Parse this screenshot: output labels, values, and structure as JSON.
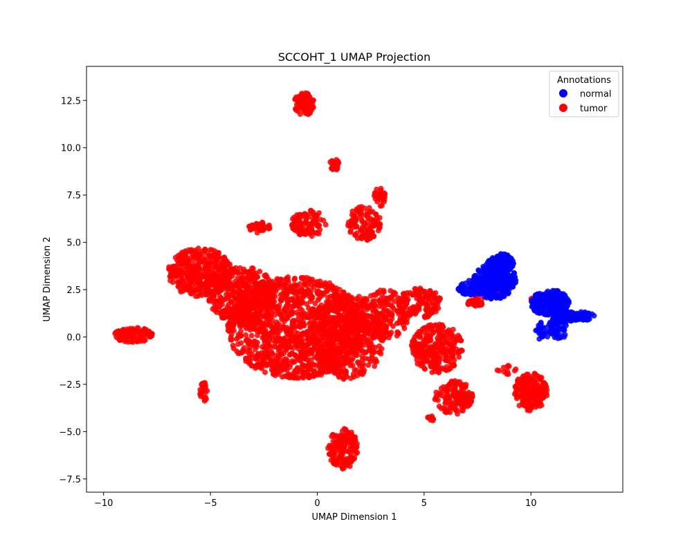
{
  "chart_data": {
    "type": "scatter",
    "title": "SCCOHT_1 UMAP Projection",
    "xlabel": "UMAP Dimension 1",
    "ylabel": "UMAP Dimension 2",
    "xlim": [
      -10.8,
      14.3
    ],
    "ylim": [
      -8.2,
      14.3
    ],
    "x_ticks": [
      -10,
      -5,
      0,
      5,
      10
    ],
    "x_tick_labels": [
      "−10",
      "−5",
      "0",
      "5",
      "10"
    ],
    "y_ticks": [
      -7.5,
      -5.0,
      -2.5,
      0.0,
      2.5,
      5.0,
      7.5,
      10.0,
      12.5
    ],
    "y_tick_labels": [
      "−7.5",
      "−5.0",
      "−2.5",
      "0.0",
      "2.5",
      "5.0",
      "7.5",
      "10.0",
      "12.5"
    ],
    "grid": false,
    "legend": {
      "title": "Annotations",
      "placement": "top-right",
      "entries": [
        {
          "label": "normal",
          "color": "#0000ff"
        },
        {
          "label": "tumor",
          "color": "#ff0000"
        }
      ]
    },
    "series": [
      {
        "name": "normal",
        "color": "#0000ff",
        "clusters": [
          {
            "cx": 8.3,
            "cy": 3.0,
            "rx": 1.0,
            "ry": 1.0,
            "n": 260
          },
          {
            "cx": 8.6,
            "cy": 3.9,
            "rx": 0.6,
            "ry": 0.5,
            "n": 140
          },
          {
            "cx": 7.4,
            "cy": 2.6,
            "rx": 0.9,
            "ry": 0.4,
            "n": 90
          },
          {
            "cx": 10.9,
            "cy": 1.8,
            "rx": 0.9,
            "ry": 0.7,
            "n": 220
          },
          {
            "cx": 12.0,
            "cy": 1.1,
            "rx": 1.0,
            "ry": 0.25,
            "n": 140
          },
          {
            "cx": 11.3,
            "cy": 0.5,
            "rx": 0.5,
            "ry": 0.6,
            "n": 60
          },
          {
            "cx": 10.6,
            "cy": 0.3,
            "rx": 0.4,
            "ry": 0.5,
            "n": 25
          }
        ]
      },
      {
        "name": "tumor",
        "color": "#ff0000",
        "clusters": [
          {
            "cx": -1.0,
            "cy": 0.5,
            "rx": 3.2,
            "ry": 2.7,
            "n": 1300
          },
          {
            "cx": -5.5,
            "cy": 3.4,
            "rx": 1.5,
            "ry": 1.3,
            "n": 380
          },
          {
            "cx": -3.5,
            "cy": 2.2,
            "rx": 1.6,
            "ry": 1.5,
            "n": 340
          },
          {
            "cx": 1.5,
            "cy": 0.0,
            "rx": 1.6,
            "ry": 2.3,
            "n": 380
          },
          {
            "cx": 3.2,
            "cy": 1.2,
            "rx": 1.2,
            "ry": 1.3,
            "n": 180
          },
          {
            "cx": 4.8,
            "cy": 1.8,
            "rx": 1.0,
            "ry": 0.8,
            "n": 120
          },
          {
            "cx": 5.6,
            "cy": -0.6,
            "rx": 1.2,
            "ry": 1.3,
            "n": 260
          },
          {
            "cx": 6.4,
            "cy": -3.2,
            "rx": 0.9,
            "ry": 0.9,
            "n": 140
          },
          {
            "cx": 10.0,
            "cy": -2.9,
            "rx": 0.8,
            "ry": 1.0,
            "n": 180
          },
          {
            "cx": 1.2,
            "cy": -5.9,
            "rx": 0.7,
            "ry": 1.1,
            "n": 160
          },
          {
            "cx": -8.6,
            "cy": 0.1,
            "rx": 0.9,
            "ry": 0.4,
            "n": 100
          },
          {
            "cx": -5.3,
            "cy": -2.9,
            "rx": 0.2,
            "ry": 0.5,
            "n": 30
          },
          {
            "cx": -0.6,
            "cy": 12.3,
            "rx": 0.5,
            "ry": 0.6,
            "n": 80
          },
          {
            "cx": 0.8,
            "cy": 9.1,
            "rx": 0.25,
            "ry": 0.3,
            "n": 22
          },
          {
            "cx": -0.4,
            "cy": 6.0,
            "rx": 0.8,
            "ry": 0.7,
            "n": 100
          },
          {
            "cx": 2.2,
            "cy": 6.0,
            "rx": 0.8,
            "ry": 0.9,
            "n": 110
          },
          {
            "cx": 2.9,
            "cy": 7.4,
            "rx": 0.3,
            "ry": 0.5,
            "n": 25
          },
          {
            "cx": -2.7,
            "cy": 5.8,
            "rx": 0.5,
            "ry": 0.3,
            "n": 35
          },
          {
            "cx": 7.4,
            "cy": 1.9,
            "rx": 0.4,
            "ry": 0.3,
            "n": 30
          },
          {
            "cx": 8.6,
            "cy": 2.4,
            "rx": 0.4,
            "ry": 0.3,
            "n": 25
          },
          {
            "cx": 10.3,
            "cy": 2.0,
            "rx": 0.3,
            "ry": 0.2,
            "n": 15
          },
          {
            "cx": 11.3,
            "cy": 1.0,
            "rx": 0.3,
            "ry": 0.2,
            "n": 15
          },
          {
            "cx": 5.3,
            "cy": -4.3,
            "rx": 0.2,
            "ry": 0.15,
            "n": 10
          },
          {
            "cx": 8.9,
            "cy": -1.8,
            "rx": 0.5,
            "ry": 0.3,
            "n": 12
          }
        ]
      }
    ]
  }
}
